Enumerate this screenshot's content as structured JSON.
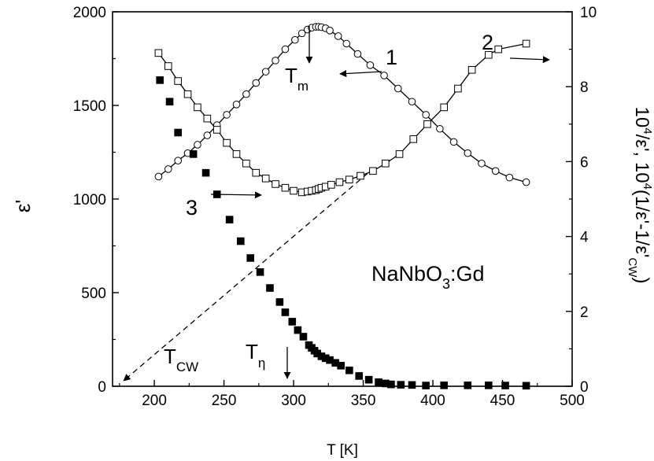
{
  "chart_data": {
    "type": "scatter",
    "x_axis": {
      "label": "T [K]",
      "range": [
        170,
        500
      ],
      "ticks": [
        200,
        250,
        300,
        350,
        400,
        450,
        500
      ]
    },
    "y_left": {
      "label": "ε'",
      "range": [
        0,
        2000
      ],
      "ticks": [
        0,
        500,
        1000,
        1500,
        2000
      ]
    },
    "y_right": {
      "label_parts": [
        "10",
        "4",
        "/ε',   10",
        "4",
        "(1/ε'-1/ε'",
        "CW",
        ")"
      ],
      "range": [
        0,
        10
      ],
      "ticks": [
        0,
        2,
        4,
        6,
        8,
        10
      ]
    },
    "grid": false,
    "series": [
      {
        "id": "1",
        "axis": "left",
        "marker": "open-circle",
        "connected": true,
        "points": [
          [
            203,
            1120
          ],
          [
            210,
            1160
          ],
          [
            217,
            1205
          ],
          [
            224,
            1245
          ],
          [
            231,
            1290
          ],
          [
            238,
            1340
          ],
          [
            245,
            1395
          ],
          [
            252,
            1450
          ],
          [
            259,
            1505
          ],
          [
            266,
            1560
          ],
          [
            273,
            1620
          ],
          [
            280,
            1680
          ],
          [
            287,
            1740
          ],
          [
            294,
            1800
          ],
          [
            301,
            1850
          ],
          [
            306,
            1885
          ],
          [
            310,
            1905
          ],
          [
            313,
            1915
          ],
          [
            316,
            1920
          ],
          [
            318,
            1920
          ],
          [
            320,
            1918
          ],
          [
            323,
            1912
          ],
          [
            326,
            1900
          ],
          [
            332,
            1870
          ],
          [
            338,
            1830
          ],
          [
            346,
            1775
          ],
          [
            355,
            1715
          ],
          [
            365,
            1660
          ],
          [
            375,
            1590
          ],
          [
            385,
            1520
          ],
          [
            395,
            1450
          ],
          [
            405,
            1375
          ],
          [
            415,
            1305
          ],
          [
            425,
            1245
          ],
          [
            435,
            1190
          ],
          [
            445,
            1150
          ],
          [
            455,
            1115
          ],
          [
            467,
            1090
          ]
        ]
      },
      {
        "id": "2",
        "axis": "right",
        "marker": "open-square",
        "connected": true,
        "points": [
          [
            203,
            8.9
          ],
          [
            210,
            8.55
          ],
          [
            217,
            8.15
          ],
          [
            224,
            7.8
          ],
          [
            231,
            7.45
          ],
          [
            238,
            7.15
          ],
          [
            245,
            6.85
          ],
          [
            252,
            6.5
          ],
          [
            259,
            6.2
          ],
          [
            266,
            5.95
          ],
          [
            273,
            5.7
          ],
          [
            280,
            5.55
          ],
          [
            287,
            5.4
          ],
          [
            294,
            5.3
          ],
          [
            300,
            5.22
          ],
          [
            306,
            5.18
          ],
          [
            310,
            5.2
          ],
          [
            313,
            5.22
          ],
          [
            316,
            5.24
          ],
          [
            318,
            5.27
          ],
          [
            320,
            5.3
          ],
          [
            323,
            5.33
          ],
          [
            327,
            5.38
          ],
          [
            333,
            5.45
          ],
          [
            340,
            5.52
          ],
          [
            348,
            5.62
          ],
          [
            357,
            5.75
          ],
          [
            366,
            5.95
          ],
          [
            376,
            6.2
          ],
          [
            386,
            6.6
          ],
          [
            396,
            7.0
          ],
          [
            408,
            7.45
          ],
          [
            418,
            7.95
          ],
          [
            428,
            8.45
          ],
          [
            440,
            8.85
          ],
          [
            447,
            9.0
          ],
          [
            467,
            9.15
          ]
        ]
      },
      {
        "id": "3",
        "axis": "left",
        "marker": "filled-square",
        "connected": false,
        "points": [
          [
            204,
            1635
          ],
          [
            211,
            1520
          ],
          [
            217,
            1355
          ],
          [
            228,
            1240
          ],
          [
            237,
            1140
          ],
          [
            245,
            1025
          ],
          [
            254,
            890
          ],
          [
            262,
            775
          ],
          [
            269,
            685
          ],
          [
            276,
            610
          ],
          [
            283,
            525
          ],
          [
            290,
            450
          ],
          [
            294,
            395
          ],
          [
            299,
            345
          ],
          [
            303,
            300
          ],
          [
            307,
            265
          ],
          [
            311,
            220
          ],
          [
            313,
            205
          ],
          [
            315,
            190
          ],
          [
            317,
            175
          ],
          [
            320,
            160
          ],
          [
            323,
            150
          ],
          [
            326,
            140
          ],
          [
            330,
            125
          ],
          [
            334,
            110
          ],
          [
            340,
            85
          ],
          [
            347,
            55
          ],
          [
            354,
            35
          ],
          [
            361,
            22
          ],
          [
            366,
            15
          ],
          [
            370,
            10
          ],
          [
            377,
            8
          ],
          [
            385,
            7
          ],
          [
            395,
            4
          ],
          [
            408,
            5
          ],
          [
            425,
            5
          ],
          [
            440,
            5
          ],
          [
            452,
            4
          ],
          [
            467,
            3
          ]
        ]
      }
    ],
    "cw_line": {
      "from": [
        178,
        0.15
      ],
      "to": [
        353,
        5.68
      ],
      "axis": "right",
      "style": "dashed"
    },
    "annotations": {
      "label_1": "1",
      "label_2": "2",
      "label_3": "3",
      "tm": "T",
      "tm_sub": "m",
      "tcw": "T",
      "tcw_sub": "CW",
      "teta": "T",
      "teta_sub": "η",
      "compound_main": "NaNbO",
      "compound_sub": "3",
      "compound_tail": ":Gd"
    }
  }
}
